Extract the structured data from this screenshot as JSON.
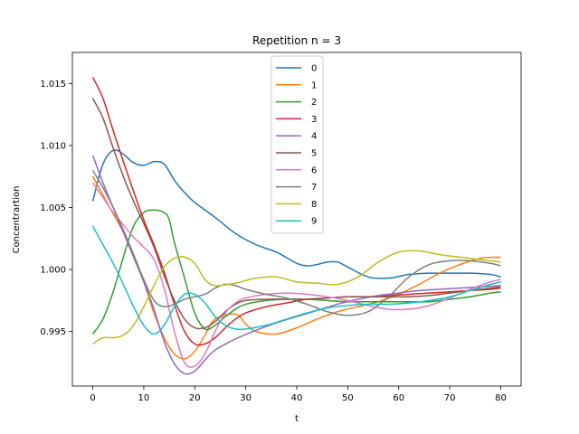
{
  "chart_data": {
    "type": "line",
    "title": "Repetition n = 3",
    "xlabel": "t",
    "ylabel": "Concentrartion",
    "xlim": [
      -4,
      84
    ],
    "ylim": [
      0.9906,
      1.0175
    ],
    "xticks": [
      0,
      10,
      20,
      30,
      40,
      50,
      60,
      70,
      80
    ],
    "yticks": [
      0.995,
      1.0,
      1.005,
      1.01,
      1.015
    ],
    "xtick_labels": [
      "0",
      "10",
      "20",
      "30",
      "40",
      "50",
      "60",
      "70",
      "80"
    ],
    "ytick_labels": [
      "0.995",
      "1.000",
      "1.005",
      "1.010",
      "1.015"
    ],
    "grid": false,
    "legend_position": "top-center",
    "series": [
      {
        "name": "0",
        "color": "#1f77b4",
        "points": [
          [
            0,
            1.0055
          ],
          [
            2,
            1.0085
          ],
          [
            4,
            1.0096
          ],
          [
            6,
            1.0093
          ],
          [
            8,
            1.0086
          ],
          [
            10,
            1.0084
          ],
          [
            12,
            1.0087
          ],
          [
            14,
            1.0085
          ],
          [
            16,
            1.0072
          ],
          [
            18,
            1.0062
          ],
          [
            20,
            1.0054
          ],
          [
            24,
            1.0042
          ],
          [
            28,
            1.0029
          ],
          [
            32,
            1.002
          ],
          [
            36,
            1.0014
          ],
          [
            40,
            1.0005
          ],
          [
            42,
            1.0003
          ],
          [
            44,
            1.0004
          ],
          [
            46,
            1.0006
          ],
          [
            48,
            1.0006
          ],
          [
            50,
            1.0002
          ],
          [
            54,
            0.9994
          ],
          [
            58,
            0.9993
          ],
          [
            62,
            0.9996
          ],
          [
            66,
            0.9997
          ],
          [
            70,
            0.9997
          ],
          [
            74,
            0.9997
          ],
          [
            78,
            0.9996
          ],
          [
            80,
            0.9994
          ]
        ]
      },
      {
        "name": "1",
        "color": "#ff7f0e",
        "points": [
          [
            0,
            1.0075
          ],
          [
            2,
            1.006
          ],
          [
            4,
            1.0045
          ],
          [
            6,
            1.003
          ],
          [
            8,
            1.0012
          ],
          [
            10,
            0.999
          ],
          [
            12,
            0.9965
          ],
          [
            14,
            0.9945
          ],
          [
            16,
            0.9932
          ],
          [
            18,
            0.9928
          ],
          [
            20,
            0.9934
          ],
          [
            22,
            0.9947
          ],
          [
            24,
            0.996
          ],
          [
            28,
            0.9964
          ],
          [
            30,
            0.9956
          ],
          [
            32,
            0.995
          ],
          [
            36,
            0.9948
          ],
          [
            40,
            0.9953
          ],
          [
            44,
            0.996
          ],
          [
            48,
            0.9966
          ],
          [
            52,
            0.997
          ],
          [
            56,
            0.9974
          ],
          [
            60,
            0.998
          ],
          [
            64,
            0.9988
          ],
          [
            68,
            0.9997
          ],
          [
            72,
            1.0004
          ],
          [
            76,
            1.0009
          ],
          [
            80,
            1.001
          ]
        ]
      },
      {
        "name": "2",
        "color": "#2ca02c",
        "points": [
          [
            0,
            0.9948
          ],
          [
            2,
            0.996
          ],
          [
            4,
            0.9982
          ],
          [
            6,
            1.001
          ],
          [
            8,
            1.0035
          ],
          [
            10,
            1.0046
          ],
          [
            12,
            1.0048
          ],
          [
            14,
            1.0046
          ],
          [
            15,
            1.004
          ],
          [
            16,
            1.0022
          ],
          [
            18,
            0.9993
          ],
          [
            20,
            0.9965
          ],
          [
            22,
            0.9952
          ],
          [
            24,
            0.9955
          ],
          [
            26,
            0.9962
          ],
          [
            28,
            0.9968
          ],
          [
            30,
            0.9972
          ],
          [
            34,
            0.9975
          ],
          [
            38,
            0.9976
          ],
          [
            42,
            0.9976
          ],
          [
            46,
            0.9975
          ],
          [
            50,
            0.9974
          ],
          [
            54,
            0.9974
          ],
          [
            58,
            0.9974
          ],
          [
            62,
            0.9974
          ],
          [
            66,
            0.9974
          ],
          [
            70,
            0.9976
          ],
          [
            74,
            0.9978
          ],
          [
            78,
            0.9981
          ],
          [
            80,
            0.9982
          ]
        ]
      },
      {
        "name": "3",
        "color": "#d62728",
        "points": [
          [
            0,
            1.0155
          ],
          [
            2,
            1.0138
          ],
          [
            4,
            1.0112
          ],
          [
            6,
            1.0087
          ],
          [
            8,
            1.0063
          ],
          [
            10,
            1.004
          ],
          [
            12,
            1.002
          ],
          [
            14,
            0.9998
          ],
          [
            16,
            0.9972
          ],
          [
            18,
            0.995
          ],
          [
            20,
            0.994
          ],
          [
            22,
            0.994
          ],
          [
            24,
            0.9945
          ],
          [
            26,
            0.9953
          ],
          [
            28,
            0.996
          ],
          [
            30,
            0.9965
          ],
          [
            34,
            0.997
          ],
          [
            38,
            0.9973
          ],
          [
            42,
            0.9976
          ],
          [
            46,
            0.9977
          ],
          [
            50,
            0.9978
          ],
          [
            54,
            0.9978
          ],
          [
            58,
            0.9979
          ],
          [
            62,
            0.998
          ],
          [
            66,
            0.9981
          ],
          [
            70,
            0.9982
          ],
          [
            74,
            0.9983
          ],
          [
            78,
            0.9984
          ],
          [
            80,
            0.9985
          ]
        ]
      },
      {
        "name": "4",
        "color": "#9467bd",
        "points": [
          [
            0,
            1.0092
          ],
          [
            2,
            1.007
          ],
          [
            4,
            1.005
          ],
          [
            6,
            1.003
          ],
          [
            8,
            1.001
          ],
          [
            10,
            0.999
          ],
          [
            12,
            0.9968
          ],
          [
            14,
            0.9942
          ],
          [
            16,
            0.9924
          ],
          [
            18,
            0.9916
          ],
          [
            20,
            0.9918
          ],
          [
            22,
            0.9927
          ],
          [
            24,
            0.9935
          ],
          [
            28,
            0.9944
          ],
          [
            32,
            0.9951
          ],
          [
            36,
            0.9957
          ],
          [
            40,
            0.9962
          ],
          [
            44,
            0.9967
          ],
          [
            48,
            0.9972
          ],
          [
            52,
            0.9976
          ],
          [
            56,
            0.9979
          ],
          [
            60,
            0.9981
          ],
          [
            64,
            0.9983
          ],
          [
            68,
            0.9984
          ],
          [
            72,
            0.9985
          ],
          [
            76,
            0.9986
          ],
          [
            80,
            0.9987
          ]
        ]
      },
      {
        "name": "5",
        "color": "#8c564b",
        "points": [
          [
            0,
            1.0138
          ],
          [
            2,
            1.0122
          ],
          [
            4,
            1.0098
          ],
          [
            6,
            1.0075
          ],
          [
            8,
            1.0055
          ],
          [
            10,
            1.0037
          ],
          [
            12,
            1.0018
          ],
          [
            14,
            0.9995
          ],
          [
            16,
            0.9975
          ],
          [
            18,
            0.996
          ],
          [
            20,
            0.9953
          ],
          [
            22,
            0.9953
          ],
          [
            24,
            0.9958
          ],
          [
            26,
            0.9966
          ],
          [
            28,
            0.9972
          ],
          [
            30,
            0.9975
          ],
          [
            34,
            0.9976
          ],
          [
            38,
            0.9976
          ],
          [
            42,
            0.9976
          ],
          [
            46,
            0.9977
          ],
          [
            50,
            0.9978
          ],
          [
            54,
            0.9978
          ],
          [
            58,
            0.9978
          ],
          [
            62,
            0.9978
          ],
          [
            66,
            0.9979
          ],
          [
            70,
            0.9981
          ],
          [
            74,
            0.9983
          ],
          [
            78,
            0.9985
          ],
          [
            80,
            0.9986
          ]
        ]
      },
      {
        "name": "6",
        "color": "#e377c2",
        "points": [
          [
            0,
            1.007
          ],
          [
            2,
            1.0058
          ],
          [
            4,
            1.0046
          ],
          [
            6,
            1.0036
          ],
          [
            8,
            1.0026
          ],
          [
            10,
            1.0018
          ],
          [
            12,
            1.0008
          ],
          [
            14,
            0.9985
          ],
          [
            16,
            0.995
          ],
          [
            18,
            0.9925
          ],
          [
            20,
            0.9922
          ],
          [
            22,
            0.9932
          ],
          [
            24,
            0.995
          ],
          [
            26,
            0.9965
          ],
          [
            28,
            0.9973
          ],
          [
            30,
            0.9977
          ],
          [
            34,
            0.998
          ],
          [
            38,
            0.9981
          ],
          [
            42,
            0.998
          ],
          [
            46,
            0.9978
          ],
          [
            50,
            0.9975
          ],
          [
            54,
            0.9971
          ],
          [
            58,
            0.9968
          ],
          [
            62,
            0.9968
          ],
          [
            66,
            0.9971
          ],
          [
            70,
            0.9977
          ],
          [
            74,
            0.9984
          ],
          [
            78,
            0.999
          ],
          [
            80,
            0.9992
          ]
        ]
      },
      {
        "name": "7",
        "color": "#7f7f7f",
        "points": [
          [
            0,
            1.008
          ],
          [
            2,
            1.0066
          ],
          [
            4,
            1.005
          ],
          [
            6,
            1.0032
          ],
          [
            8,
            1.0012
          ],
          [
            10,
            0.9992
          ],
          [
            12,
            0.9975
          ],
          [
            14,
            0.997
          ],
          [
            16,
            0.9972
          ],
          [
            18,
            0.9976
          ],
          [
            20,
            0.9978
          ],
          [
            22,
            0.998
          ],
          [
            24,
            0.9985
          ],
          [
            26,
            0.9988
          ],
          [
            28,
            0.9987
          ],
          [
            30,
            0.9984
          ],
          [
            34,
            0.998
          ],
          [
            38,
            0.9977
          ],
          [
            42,
            0.9972
          ],
          [
            46,
            0.9966
          ],
          [
            50,
            0.9963
          ],
          [
            54,
            0.9966
          ],
          [
            58,
            0.9978
          ],
          [
            62,
            0.9994
          ],
          [
            66,
            1.0004
          ],
          [
            70,
            1.0007
          ],
          [
            74,
            1.0007
          ],
          [
            78,
            1.0005
          ],
          [
            80,
            1.0003
          ]
        ]
      },
      {
        "name": "8",
        "color": "#bcbd22",
        "points": [
          [
            0,
            0.994
          ],
          [
            2,
            0.9945
          ],
          [
            4,
            0.9945
          ],
          [
            6,
            0.9947
          ],
          [
            8,
            0.9955
          ],
          [
            10,
            0.997
          ],
          [
            12,
            0.9987
          ],
          [
            14,
            1.0002
          ],
          [
            16,
            1.0009
          ],
          [
            18,
            1.001
          ],
          [
            20,
            1.0005
          ],
          [
            22,
            0.9992
          ],
          [
            24,
            0.9987
          ],
          [
            28,
            0.9989
          ],
          [
            32,
            0.9993
          ],
          [
            36,
            0.9994
          ],
          [
            40,
            0.999
          ],
          [
            44,
            0.9989
          ],
          [
            48,
            0.9988
          ],
          [
            52,
            0.9994
          ],
          [
            56,
            1.0006
          ],
          [
            60,
            1.0014
          ],
          [
            64,
            1.0015
          ],
          [
            68,
            1.0012
          ],
          [
            72,
            1.001
          ],
          [
            76,
            1.0008
          ],
          [
            80,
            1.0006
          ]
        ]
      },
      {
        "name": "9",
        "color": "#17becf",
        "points": [
          [
            0,
            1.0035
          ],
          [
            2,
            1.002
          ],
          [
            4,
            1.0005
          ],
          [
            6,
            0.9988
          ],
          [
            8,
            0.997
          ],
          [
            10,
            0.9955
          ],
          [
            12,
            0.9948
          ],
          [
            14,
            0.9955
          ],
          [
            16,
            0.997
          ],
          [
            18,
            0.998
          ],
          [
            20,
            0.998
          ],
          [
            22,
            0.9973
          ],
          [
            24,
            0.9962
          ],
          [
            26,
            0.9955
          ],
          [
            28,
            0.9952
          ],
          [
            30,
            0.9952
          ],
          [
            34,
            0.9955
          ],
          [
            38,
            0.996
          ],
          [
            42,
            0.9965
          ],
          [
            46,
            0.9969
          ],
          [
            50,
            0.9971
          ],
          [
            54,
            0.9972
          ],
          [
            58,
            0.9972
          ],
          [
            62,
            0.9973
          ],
          [
            66,
            0.9975
          ],
          [
            70,
            0.9978
          ],
          [
            74,
            0.9983
          ],
          [
            78,
            0.9988
          ],
          [
            80,
            0.999
          ]
        ]
      }
    ]
  }
}
